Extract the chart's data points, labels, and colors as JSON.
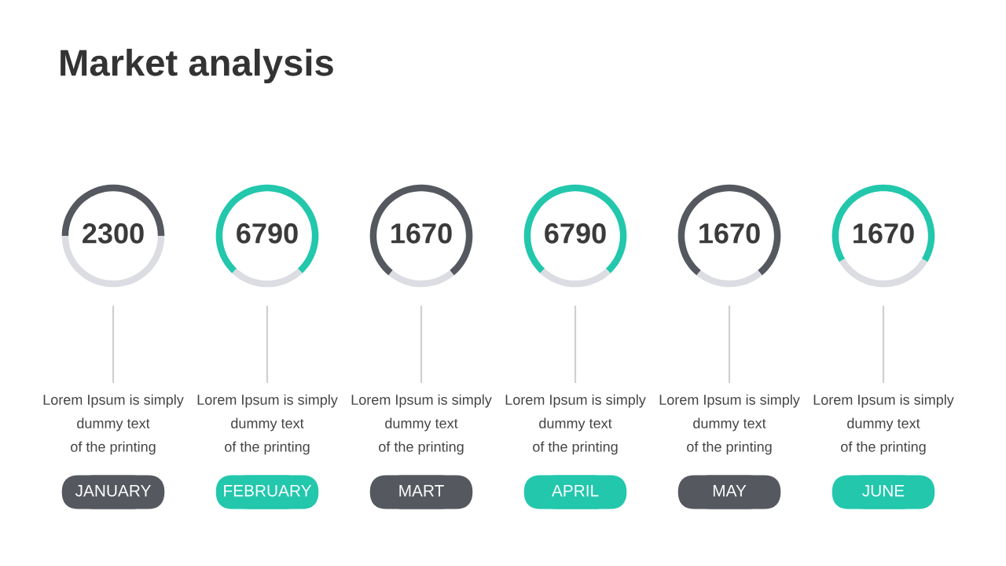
{
  "chart_data": [
    {
      "type": "other",
      "title": "Market analysis"
    },
    {
      "type": "donut",
      "categories": [
        null,
        null
      ],
      "values": [
        50,
        50
      ],
      "colors": [
        "#55585e",
        "#dcdde3"
      ],
      "annotations": [
        "2300",
        "Lorem Ipsum is simply\ndummy text\nof the printing"
      ],
      "xlabel": "JANUARY"
    },
    {
      "type": "donut",
      "categories": [
        null,
        null
      ],
      "values": [
        76,
        24
      ],
      "colors": [
        "#22c7ac",
        "#dcdde3"
      ],
      "annotations": [
        "6790",
        "Lorem Ipsum is simply\ndummy text\nof the printing"
      ],
      "xlabel": "FEBRUARY"
    },
    {
      "type": "donut",
      "categories": [
        null,
        null
      ],
      "values": [
        78,
        22
      ],
      "colors": [
        "#55585e",
        "#dcdde3"
      ],
      "annotations": [
        "1670",
        "Lorem Ipsum is simply\ndummy text\nof the printing"
      ],
      "xlabel": "MART"
    },
    {
      "type": "donut",
      "categories": [
        null,
        null
      ],
      "values": [
        76,
        24
      ],
      "colors": [
        "#22c7ac",
        "#dcdde3"
      ],
      "annotations": [
        "6790",
        "Lorem Ipsum is simply\ndummy text\nof the printing"
      ],
      "xlabel": "APRIL"
    },
    {
      "type": "donut",
      "categories": [
        null,
        null
      ],
      "values": [
        78,
        22
      ],
      "colors": [
        "#55585e",
        "#dcdde3"
      ],
      "annotations": [
        "1670",
        "Lorem Ipsum is simply\ndummy text\nof the printing"
      ],
      "xlabel": "MAY"
    },
    {
      "type": "donut",
      "categories": [
        null,
        null
      ],
      "values": [
        67,
        33
      ],
      "colors": [
        "#22c7ac",
        "#dcdde3"
      ],
      "annotations": [
        "1670",
        "Lorem Ipsum is simply\ndummy text\nof the printing"
      ],
      "xlabel": "JUNE"
    }
  ]
}
